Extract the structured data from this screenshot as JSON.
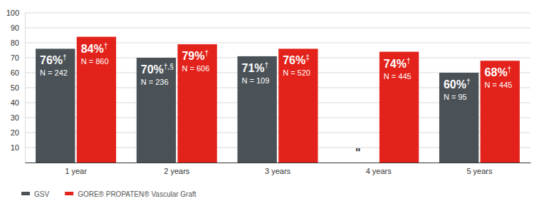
{
  "chart_data": {
    "type": "bar",
    "categories": [
      "1 year",
      "2 years",
      "3 years",
      "4 years",
      "5 years"
    ],
    "series": [
      {
        "name": "GSV",
        "color": "#4b5257",
        "values": [
          76,
          70,
          71,
          null,
          60
        ],
        "value_labels": [
          "76%†",
          "70%†,§",
          "71%†",
          "\"",
          "60%†"
        ],
        "n_labels": [
          "N = 242",
          "N = 236",
          "N = 109",
          null,
          "N = 95"
        ]
      },
      {
        "name": "GORE® PROPATEN® Vascular Graft",
        "color": "#e3231b",
        "values": [
          84,
          79,
          76,
          74,
          68
        ],
        "value_labels": [
          "84%†",
          "79%†",
          "76%‡",
          "74%†",
          "68%†"
        ],
        "n_labels": [
          "N = 860",
          "N = 606",
          "N = 520",
          "N = 445",
          "N = 445"
        ]
      }
    ],
    "ylim": [
      0,
      100
    ],
    "yticks": [
      10,
      20,
      30,
      40,
      50,
      60,
      70,
      80,
      90,
      100
    ],
    "grid": true,
    "legend": "bottom-left",
    "data_labels": true
  }
}
